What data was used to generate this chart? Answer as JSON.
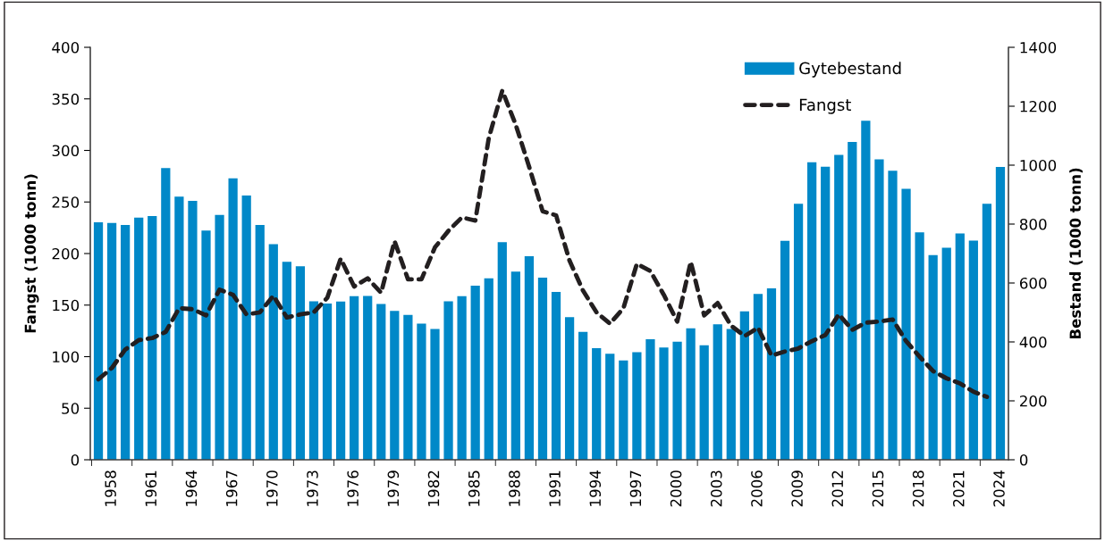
{
  "chart_data": {
    "type": "bar",
    "categories": [
      null,
      "1958",
      null,
      null,
      "1961",
      null,
      null,
      "1964",
      null,
      null,
      "1967",
      null,
      null,
      "1970",
      null,
      null,
      "1973",
      null,
      null,
      "1976",
      null,
      null,
      "1979",
      null,
      null,
      "1982",
      null,
      null,
      "1985",
      null,
      null,
      "1988",
      null,
      null,
      "1991",
      null,
      null,
      "1994",
      null,
      null,
      "1997",
      null,
      null,
      "2000",
      null,
      null,
      "2003",
      null,
      null,
      "2006",
      null,
      null,
      "2009",
      null,
      null,
      "2012",
      null,
      null,
      "2015",
      null,
      null,
      "2018",
      null,
      null,
      "2021",
      null,
      null,
      "2024"
    ],
    "series": [
      {
        "name": "Gytebestand",
        "axis": "y2",
        "color": "#0088c8",
        "values": [
          806,
          804,
          797,
          822,
          827,
          990,
          893,
          879,
          778,
          831,
          955,
          897,
          797,
          732,
          672,
          657,
          538,
          530,
          537,
          555,
          556,
          529,
          505,
          492,
          462,
          444,
          538,
          555,
          591,
          616,
          739,
          639,
          691,
          618,
          570,
          484,
          434,
          379,
          360,
          337,
          365,
          409,
          381,
          401,
          446,
          389,
          460,
          444,
          504,
          563,
          582,
          743,
          869,
          1010,
          995,
          1035,
          1079,
          1151,
          1020,
          981,
          920,
          772,
          695,
          720,
          768,
          744,
          869,
          994
        ]
      },
      {
        "name": "Fangst",
        "type": "line",
        "axis": "y",
        "color": "#231f20",
        "line_style": "dashed",
        "values": [
          78,
          89,
          107,
          116,
          118,
          124,
          147,
          146,
          140,
          165,
          160,
          141,
          143,
          159,
          138,
          141,
          143,
          157,
          195,
          168,
          176,
          162,
          212,
          175,
          175,
          206,
          222,
          235,
          232,
          312,
          358,
          325,
          284,
          241,
          237,
          193,
          164,
          143,
          132,
          147,
          190,
          183,
          160,
          134,
          192,
          140,
          152,
          130,
          120,
          128,
          101,
          105,
          108,
          115,
          121,
          141,
          126,
          133,
          134,
          136,
          115,
          100,
          86,
          79,
          74,
          66,
          61,
          null
        ]
      }
    ],
    "ylabel": "Fangst (1000 tonn)",
    "y2label": "Bestand (1000 tonn)",
    "ylim": [
      0,
      400
    ],
    "yticks": [
      0,
      50,
      100,
      150,
      200,
      250,
      300,
      350,
      400
    ],
    "y2lim": [
      0,
      1400
    ],
    "y2ticks": [
      0,
      200,
      400,
      600,
      800,
      1000,
      1200,
      1400
    ],
    "legend": "top right",
    "grid": false
  }
}
